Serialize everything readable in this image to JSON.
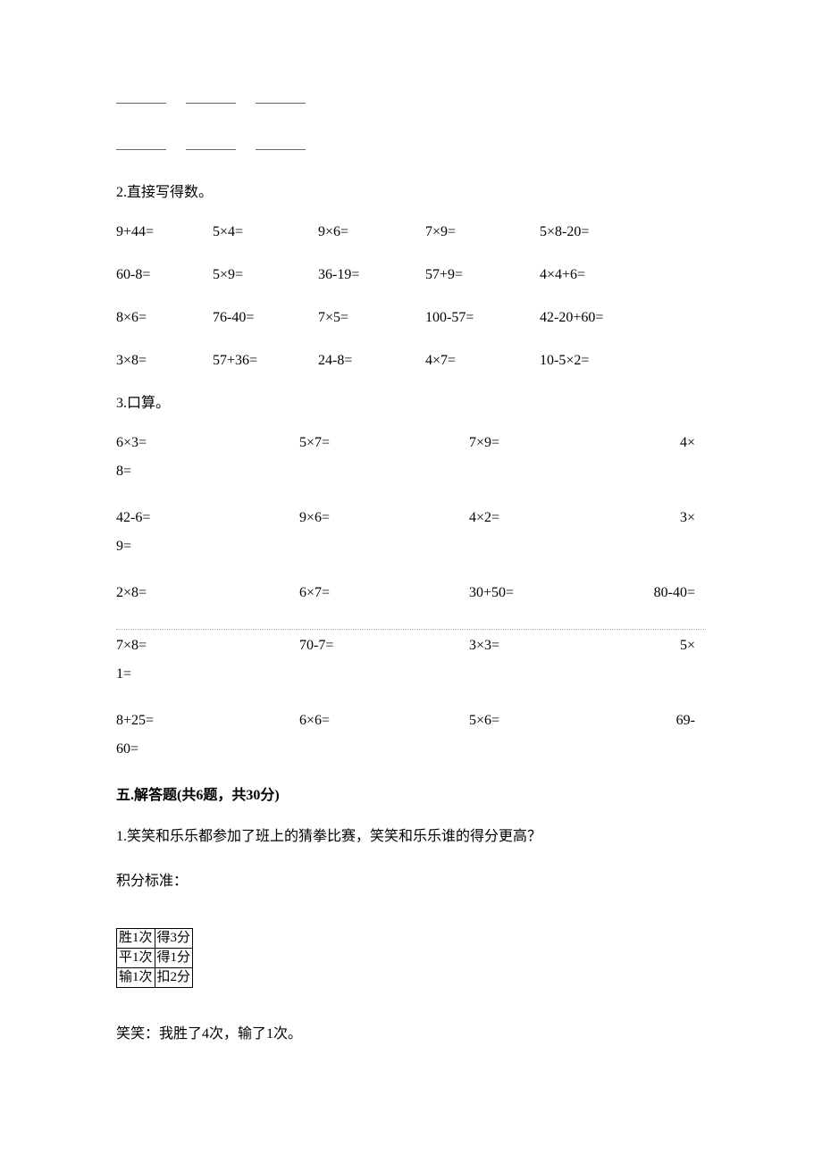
{
  "colors": {
    "text": "#000000",
    "background": "#ffffff",
    "blank_line": "#666666",
    "dotted_line": "#b0b0b0",
    "table_border": "#000000"
  },
  "typography": {
    "family": "SimSun / 宋体",
    "body_size_pt": 12,
    "heading_weight": "bold"
  },
  "blanks": {
    "rows": 2,
    "per_row": 3
  },
  "q2": {
    "title": "2.直接写得数。",
    "rows": [
      [
        "9+44=",
        "5×4=",
        "9×6=",
        "7×9=",
        "5×8-20="
      ],
      [
        "60-8=",
        "5×9=",
        "36-19=",
        "57+9=",
        "4×4+6="
      ],
      [
        "8×6=",
        "76-40=",
        "7×5=",
        "100-57=",
        "42-20+60="
      ],
      [
        "3×8=",
        "57+36=",
        "24-8=",
        "4×7=",
        "10-5×2="
      ]
    ]
  },
  "q3": {
    "title": "3.口算。",
    "rows": [
      {
        "cells": [
          "6×3=",
          "5×7=",
          "7×9=",
          "4×"
        ],
        "wrap_head": "8="
      },
      {
        "cells": [
          "42-6=",
          "9×6=",
          "4×2=",
          "3×"
        ],
        "wrap_head": "9="
      },
      {
        "cells": [
          "2×8=",
          "6×7=",
          "30+50=",
          "80-40="
        ],
        "wrap_head": null
      },
      {
        "cells": [
          "7×8=",
          "70-7=",
          "3×3=",
          "5×"
        ],
        "wrap_head": "1="
      },
      {
        "cells": [
          "8+25=",
          "6×6=",
          "5×6=",
          "69-"
        ],
        "wrap_head": "60="
      }
    ]
  },
  "section5": {
    "heading": "五.解答题(共6题，共30分)",
    "q1_line": "1.笑笑和乐乐都参加了班上的猜拳比赛，笑笑和乐乐谁的得分更高？",
    "scoring_label": "积分标准：",
    "table": {
      "rows": [
        [
          "胜1次",
          "得3分"
        ],
        [
          "平1次",
          "得1分"
        ],
        [
          "输1次",
          "扣2分"
        ]
      ]
    },
    "xiao_line": "笑笑：我胜了4次，输了1次。"
  }
}
